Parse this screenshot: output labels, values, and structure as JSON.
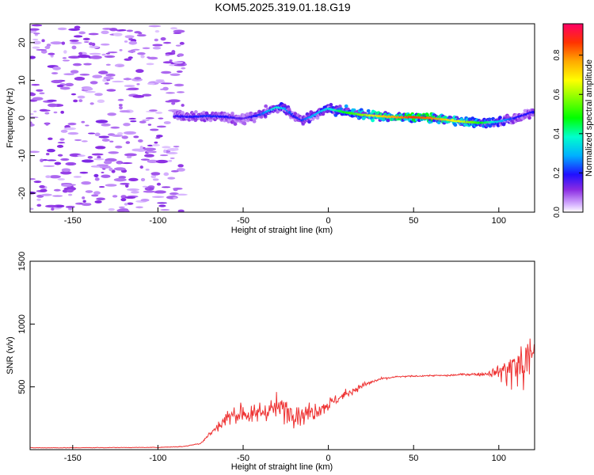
{
  "title": "KOM5.2025.319.01.18.G19",
  "chart_data": [
    {
      "type": "heatmap",
      "title": "KOM5.2025.319.01.18.G19",
      "xlabel": "Height of straight line (km)",
      "ylabel": "Frequency (Hz)",
      "xlim": [
        -175,
        121
      ],
      "ylim": [
        -25,
        25
      ],
      "xticks": [
        -150,
        -100,
        -50,
        0,
        50,
        100
      ],
      "yticks": [
        -20,
        -10,
        0,
        10,
        20
      ],
      "colorbar": {
        "label": "Normalized spectral amplitude",
        "range": [
          0,
          0.96
        ],
        "ticks": [
          0.0,
          0.2,
          0.4,
          0.6,
          0.8
        ]
      },
      "ridge": {
        "description": "dominant Doppler frequency trace",
        "x": [
          -90,
          -80,
          -70,
          -60,
          -50,
          -40,
          -30,
          -25,
          -20,
          -15,
          -10,
          -5,
          0,
          10,
          20,
          30,
          40,
          50,
          60,
          70,
          80,
          90,
          100,
          110,
          120
        ],
        "y": [
          0.5,
          0.3,
          0.5,
          0.3,
          -0.2,
          0.8,
          2.8,
          2.5,
          0.5,
          -0.6,
          0.2,
          1.5,
          2.5,
          1.5,
          0.8,
          0.5,
          0.2,
          0.2,
          0.0,
          -0.5,
          -1.0,
          -1.3,
          -1.0,
          0.0,
          1.5
        ],
        "amplitude": [
          0.18,
          0.2,
          0.22,
          0.2,
          0.15,
          0.22,
          0.4,
          0.3,
          0.2,
          0.22,
          0.3,
          0.32,
          0.35,
          0.5,
          0.6,
          0.75,
          0.8,
          0.9,
          0.85,
          0.75,
          0.65,
          0.5,
          0.35,
          0.2,
          0.2
        ]
      },
      "noise_region": [
        -175,
        -85
      ]
    },
    {
      "type": "line",
      "xlabel": "Height of straight line (km)",
      "ylabel": "SNR (v/v)",
      "xlim": [
        -175,
        121
      ],
      "ylim": [
        0,
        1500
      ],
      "xticks": [
        -150,
        -100,
        -50,
        0,
        50,
        100
      ],
      "yticks": [
        500,
        1000,
        1500
      ],
      "series": [
        {
          "name": "SNR",
          "color": "#ee3333",
          "x": [
            -175,
            -150,
            -100,
            -85,
            -75,
            -70,
            -65,
            -60,
            -55,
            -50,
            -45,
            -40,
            -35,
            -30,
            -25,
            -20,
            -15,
            -10,
            -5,
            0,
            10,
            20,
            30,
            40,
            50,
            60,
            70,
            80,
            90,
            95,
            100,
            105,
            110,
            115,
            118,
            121
          ],
          "y": [
            15,
            15,
            18,
            25,
            50,
            120,
            180,
            250,
            280,
            300,
            260,
            300,
            320,
            330,
            320,
            300,
            280,
            300,
            330,
            360,
            440,
            510,
            560,
            580,
            585,
            590,
            590,
            600,
            600,
            610,
            620,
            640,
            660,
            680,
            700,
            830
          ],
          "amplitude": [
            4,
            4,
            4,
            6,
            10,
            40,
            70,
            110,
            140,
            150,
            140,
            150,
            170,
            180,
            190,
            170,
            160,
            150,
            120,
            90,
            60,
            40,
            20,
            12,
            10,
            10,
            12,
            14,
            22,
            40,
            110,
            260,
            380,
            420,
            440,
            100
          ]
        }
      ]
    }
  ]
}
